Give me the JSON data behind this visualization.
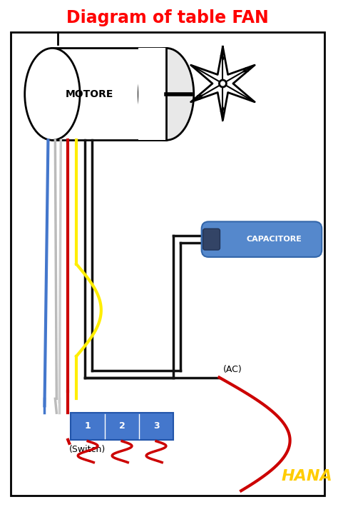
{
  "title": "Diagram of table FAN",
  "title_color": "#ff0000",
  "title_fontsize": 17,
  "bg_color": "#ffffff",
  "hana_text": "HANA",
  "hana_color": "#ffcc00",
  "motor_label": "MOTORE",
  "capacitor_label": "CAPACITORE",
  "switch_label": "(Switch)",
  "ac_label": "(AC)",
  "switch_numbers": [
    "1",
    "2",
    "3"
  ],
  "capacitor_color": "#5588cc",
  "capacitor_dark": "#334466",
  "switch_color": "#4477cc",
  "wire_blue": "#4477cc",
  "wire_gray": "#aaaaaa",
  "wire_red": "#cc0000",
  "wire_yellow": "#ffee00",
  "wire_black": "#111111"
}
